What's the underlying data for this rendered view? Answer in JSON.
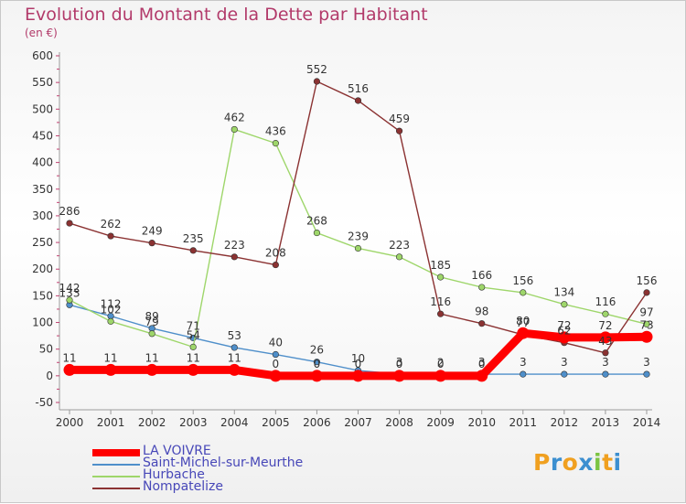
{
  "title": "Evolution du Montant de la Dette par Habitant",
  "unit": "(en €)",
  "logo": "Proxiti",
  "chart_data": {
    "type": "line",
    "title": "Evolution du Montant de la Dette par Habitant",
    "ylabel": "(en €)",
    "xlabel": "",
    "x": [
      "2000",
      "2001",
      "2002",
      "2003",
      "2004",
      "2005",
      "2006",
      "2007",
      "2008",
      "2009",
      "2010",
      "2011",
      "2012",
      "2013",
      "2014"
    ],
    "ylim": [
      -50,
      600
    ],
    "yticks": [
      -50,
      0,
      50,
      100,
      150,
      200,
      250,
      300,
      350,
      400,
      450,
      500,
      550,
      600
    ],
    "grid": false,
    "legend_position": "bottom-left",
    "series": [
      {
        "name": "LA VOIVRE",
        "color": "#ff0000",
        "values": [
          11,
          11,
          11,
          11,
          11,
          0,
          0,
          0,
          0,
          0,
          0,
          80,
          72,
          72,
          73
        ]
      },
      {
        "name": "Saint-Michel-sur-Meurthe",
        "color": "#4f8fca",
        "values": [
          133,
          112,
          89,
          71,
          53,
          40,
          26,
          10,
          3,
          2,
          3,
          3,
          3,
          3,
          3
        ]
      },
      {
        "name": "Hurbache",
        "color": "#9ed66a",
        "values": [
          142,
          102,
          79,
          54,
          462,
          436,
          268,
          239,
          223,
          185,
          166,
          156,
          134,
          116,
          97
        ]
      },
      {
        "name": "Nompatelize",
        "color": "#8b3232",
        "values": [
          286,
          262,
          249,
          235,
          223,
          208,
          552,
          516,
          459,
          116,
          98,
          77,
          62,
          43,
          156
        ]
      }
    ]
  }
}
